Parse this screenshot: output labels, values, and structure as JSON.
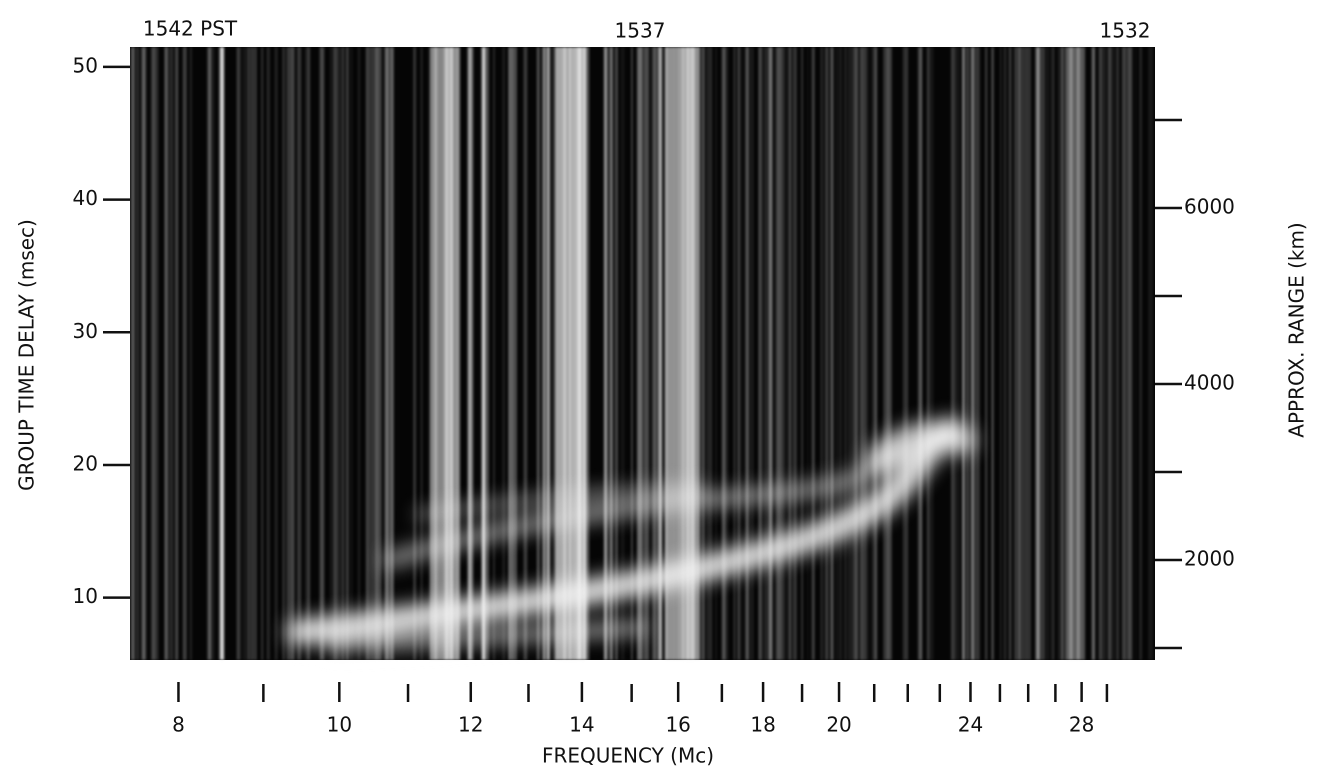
{
  "chart_data": {
    "type": "ionogram",
    "time_labels": [
      "1542 PST",
      "1537",
      "1532"
    ],
    "xlabel": "FREQUENCY (Mc)",
    "ylabel": "GROUP TIME DELAY (msec)",
    "y2label": "APPROX. RANGE (km)",
    "xscale": "log",
    "xlim": [
      7.48,
      31.0
    ],
    "xticks": [
      8,
      10,
      12,
      14,
      16,
      18,
      20,
      24,
      28
    ],
    "xminor": [
      9,
      11,
      13,
      15,
      17,
      19,
      21,
      22,
      23,
      25,
      26,
      27,
      29
    ],
    "ylim": [
      5.3,
      51.5
    ],
    "yticks": [
      10,
      20,
      30,
      40,
      50
    ],
    "y2lim": [
      864,
      7830
    ],
    "y2ticks": [
      2000,
      4000,
      6000
    ],
    "y2minor": [
      1000,
      3000,
      5000,
      7000
    ]
  }
}
